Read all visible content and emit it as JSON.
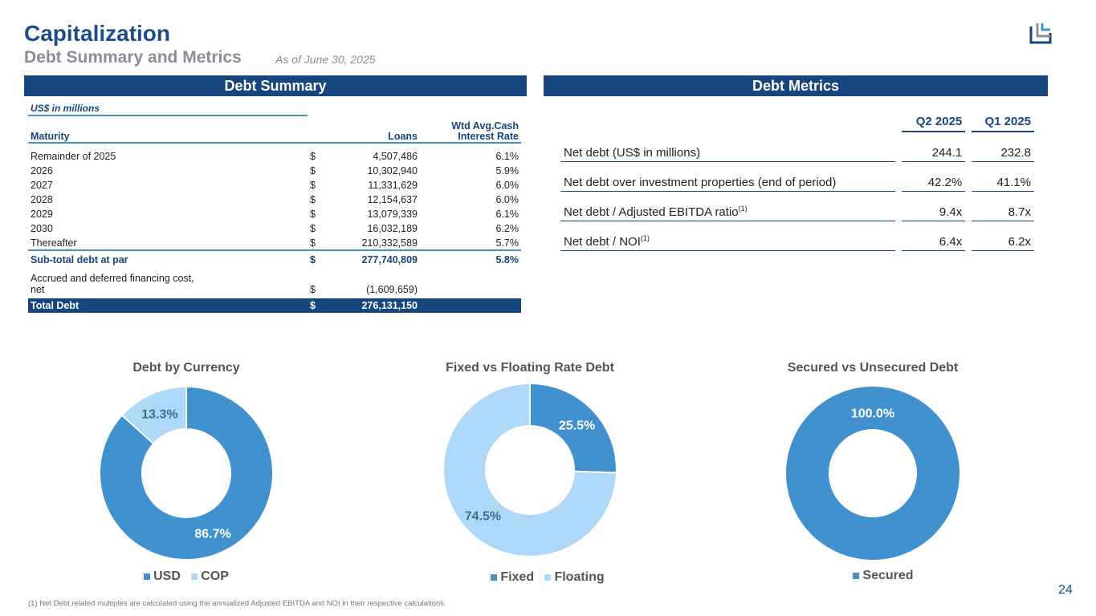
{
  "header": {
    "title": "Capitalization",
    "subtitle": "Debt Summary and Metrics",
    "as_of": "As of June 30, 2025"
  },
  "debt_summary": {
    "title": "Debt Summary",
    "units": "US$ in millions",
    "columns": [
      "Maturity",
      "Loans",
      "Wtd Avg.Cash Interest Rate"
    ],
    "rows": [
      {
        "maturity": "Remainder of 2025",
        "cur": "$",
        "loans": "4,507,486",
        "rate": "6.1%"
      },
      {
        "maturity": "2026",
        "cur": "$",
        "loans": "10,302,940",
        "rate": "5.9%"
      },
      {
        "maturity": "2027",
        "cur": "$",
        "loans": "11,331,629",
        "rate": "6.0%"
      },
      {
        "maturity": "2028",
        "cur": "$",
        "loans": "12,154,637",
        "rate": "6.0%"
      },
      {
        "maturity": "2029",
        "cur": "$",
        "loans": "13,079,339",
        "rate": "6.1%"
      },
      {
        "maturity": "2030",
        "cur": "$",
        "loans": "16,032,189",
        "rate": "6.2%"
      },
      {
        "maturity": "Thereafter",
        "cur": "$",
        "loans": "210,332,589",
        "rate": "5.7%"
      }
    ],
    "subtotal": {
      "label": "Sub-total debt at par",
      "cur": "$",
      "loans": "277,740,809",
      "rate": "5.8%"
    },
    "accrued": {
      "label": "Accrued and deferred financing cost, net",
      "cur": "$",
      "loans": "(1,609,659)"
    },
    "total": {
      "label": "Total Debt",
      "cur": "$",
      "loans": "276,131,150"
    }
  },
  "debt_metrics": {
    "title": "Debt Metrics",
    "columns": [
      "Q2 2025",
      "Q1 2025"
    ],
    "rows": [
      {
        "label": "Net debt (US$ in millions)",
        "sup": "",
        "q2": "244.1",
        "q1": "232.8"
      },
      {
        "label": "Net debt over investment properties (end of period)",
        "sup": "",
        "q2": "42.2%",
        "q1": "41.1%"
      },
      {
        "label": "Net debt / Adjusted EBITDA ratio",
        "sup": "(1)",
        "q2": "9.4x",
        "q1": "8.7x"
      },
      {
        "label": "Net debt / NOI",
        "sup": "(1)",
        "q2": "6.4x",
        "q1": "6.2x"
      }
    ]
  },
  "chart_data": [
    {
      "type": "pie",
      "title": "Debt by Currency",
      "categories": [
        "USD",
        "COP"
      ],
      "values": [
        86.7,
        13.3
      ],
      "labels": [
        "86.7%",
        "13.3%"
      ],
      "colors": [
        "#4191cf",
        "#add8f7"
      ],
      "legend": "bottom"
    },
    {
      "type": "pie",
      "title": "Fixed vs Floating Rate Debt",
      "categories": [
        "Fixed",
        "Floating"
      ],
      "values": [
        25.5,
        74.5
      ],
      "labels": [
        "25.5%",
        "74.5%"
      ],
      "colors": [
        "#4191cf",
        "#add8f7"
      ],
      "legend": "bottom"
    },
    {
      "type": "pie",
      "title": "Secured vs Unsecured Debt",
      "categories": [
        "Secured"
      ],
      "values": [
        100.0
      ],
      "labels": [
        "100.0%"
      ],
      "colors": [
        "#4191cf"
      ],
      "legend": "bottom"
    }
  ],
  "footnote": "(1) Net Debt related multiples are calculated using the annualized Adjusted EBITDA and NOI in their respective calculations.",
  "page_number": "24"
}
